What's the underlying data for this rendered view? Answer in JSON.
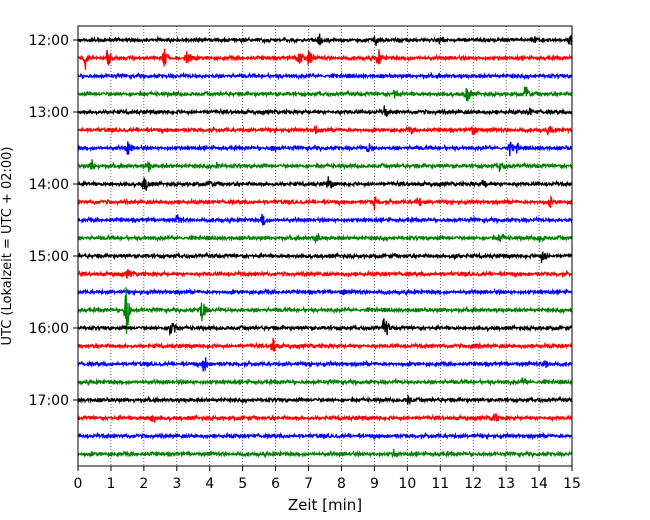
{
  "chart_data": {
    "type": "line",
    "title": "",
    "xlabel": "Zeit  [min]",
    "ylabel": "UTC (Lokalzeit = UTC + 02:00)",
    "xlim": [
      0,
      15
    ],
    "x_ticks": [
      0,
      1,
      2,
      3,
      4,
      5,
      6,
      7,
      8,
      9,
      10,
      11,
      12,
      13,
      14,
      15
    ],
    "x_tick_labels": [
      "0",
      "1",
      "2",
      "3",
      "4",
      "5",
      "6",
      "7",
      "8",
      "9",
      "10",
      "11",
      "12",
      "13",
      "14",
      "15"
    ],
    "y_tick_labels": [
      "12:00",
      "13:00",
      "14:00",
      "15:00",
      "16:00",
      "17:00"
    ],
    "y_tick_rows": [
      0,
      4,
      8,
      12,
      16,
      20
    ],
    "grid": {
      "vertical": true,
      "style": "dotted"
    },
    "row_minutes": 15,
    "series_colors": [
      "#000000",
      "#ff0000",
      "#0000ff",
      "#008000"
    ],
    "rows": [
      {
        "start": "12:00",
        "events": [
          {
            "t": 7.3,
            "a": 0.6
          },
          {
            "t": 9.0,
            "a": 0.5
          },
          {
            "t": 11.0,
            "a": 0.7
          },
          {
            "t": 13.8,
            "a": 0.5
          },
          {
            "t": 14.95,
            "a": 1.1
          }
        ]
      },
      {
        "start": "12:15",
        "events": [
          {
            "t": 0.2,
            "a": 1.0
          },
          {
            "t": 0.9,
            "a": 0.9
          },
          {
            "t": 2.6,
            "a": 1.0
          },
          {
            "t": 3.3,
            "a": 0.7
          },
          {
            "t": 6.7,
            "a": 1.2
          },
          {
            "t": 7.0,
            "a": 0.8
          },
          {
            "t": 9.1,
            "a": 0.9
          }
        ]
      },
      {
        "start": "12:30",
        "events": []
      },
      {
        "start": "12:45",
        "events": [
          {
            "t": 9.6,
            "a": 0.6
          },
          {
            "t": 11.8,
            "a": 0.9
          },
          {
            "t": 13.6,
            "a": 0.9
          }
        ]
      },
      {
        "start": "13:00",
        "events": [
          {
            "t": 9.3,
            "a": 0.4
          },
          {
            "t": 13.7,
            "a": 0.4
          }
        ]
      },
      {
        "start": "13:15",
        "events": [
          {
            "t": 7.2,
            "a": 0.4
          },
          {
            "t": 10.1,
            "a": 0.5
          },
          {
            "t": 12.0,
            "a": 1.0
          },
          {
            "t": 14.3,
            "a": 0.5
          }
        ]
      },
      {
        "start": "13:30",
        "events": [
          {
            "t": 1.5,
            "a": 0.6
          },
          {
            "t": 5.9,
            "a": 0.6
          },
          {
            "t": 8.8,
            "a": 0.5
          },
          {
            "t": 13.1,
            "a": 0.5
          },
          {
            "t": 13.3,
            "a": 0.4
          }
        ]
      },
      {
        "start": "13:45",
        "events": [
          {
            "t": 0.4,
            "a": 0.5
          },
          {
            "t": 2.1,
            "a": 0.5
          },
          {
            "t": 4.2,
            "a": 0.4
          },
          {
            "t": 12.8,
            "a": 0.5
          }
        ]
      },
      {
        "start": "14:00",
        "events": [
          {
            "t": 2.0,
            "a": 0.9
          },
          {
            "t": 4.0,
            "a": 0.4
          },
          {
            "t": 7.6,
            "a": 0.6
          },
          {
            "t": 12.3,
            "a": 0.4
          }
        ]
      },
      {
        "start": "14:15",
        "events": [
          {
            "t": 9.0,
            "a": 0.6
          },
          {
            "t": 10.3,
            "a": 0.5
          },
          {
            "t": 14.3,
            "a": 0.4
          }
        ]
      },
      {
        "start": "14:30",
        "events": [
          {
            "t": 3.0,
            "a": 0.5
          },
          {
            "t": 5.6,
            "a": 0.6
          }
        ]
      },
      {
        "start": "14:45",
        "events": [
          {
            "t": 7.2,
            "a": 0.7
          },
          {
            "t": 12.8,
            "a": 0.6
          },
          {
            "t": 14.0,
            "a": 0.5
          }
        ]
      },
      {
        "start": "15:00",
        "events": [
          {
            "t": 14.1,
            "a": 0.8
          },
          {
            "t": 11.4,
            "a": 0.3
          }
        ]
      },
      {
        "start": "15:15",
        "events": [
          {
            "t": 1.5,
            "a": 0.4
          }
        ]
      },
      {
        "start": "15:30",
        "events": [
          {
            "t": 8.0,
            "a": 0.3
          }
        ]
      },
      {
        "start": "15:45",
        "events": [
          {
            "t": 1.45,
            "a": 2.6
          },
          {
            "t": 3.75,
            "a": 1.5
          }
        ]
      },
      {
        "start": "16:00",
        "events": [
          {
            "t": 2.8,
            "a": 1.3
          },
          {
            "t": 9.3,
            "a": 1.1
          }
        ]
      },
      {
        "start": "16:15",
        "events": [
          {
            "t": 5.9,
            "a": 0.8
          },
          {
            "t": 12.0,
            "a": 0.3
          }
        ]
      },
      {
        "start": "16:30",
        "events": [
          {
            "t": 3.8,
            "a": 1.1
          },
          {
            "t": 14.2,
            "a": 0.7
          }
        ]
      },
      {
        "start": "16:45",
        "events": [
          {
            "t": 13.5,
            "a": 0.4
          }
        ]
      },
      {
        "start": "17:00",
        "events": [
          {
            "t": 10.0,
            "a": 0.4
          }
        ]
      },
      {
        "start": "17:15",
        "events": [
          {
            "t": 2.2,
            "a": 0.6
          },
          {
            "t": 12.6,
            "a": 0.5
          }
        ]
      },
      {
        "start": "17:30",
        "events": []
      },
      {
        "start": "17:45",
        "events": [
          {
            "t": 9.6,
            "a": 0.3
          }
        ]
      }
    ]
  }
}
